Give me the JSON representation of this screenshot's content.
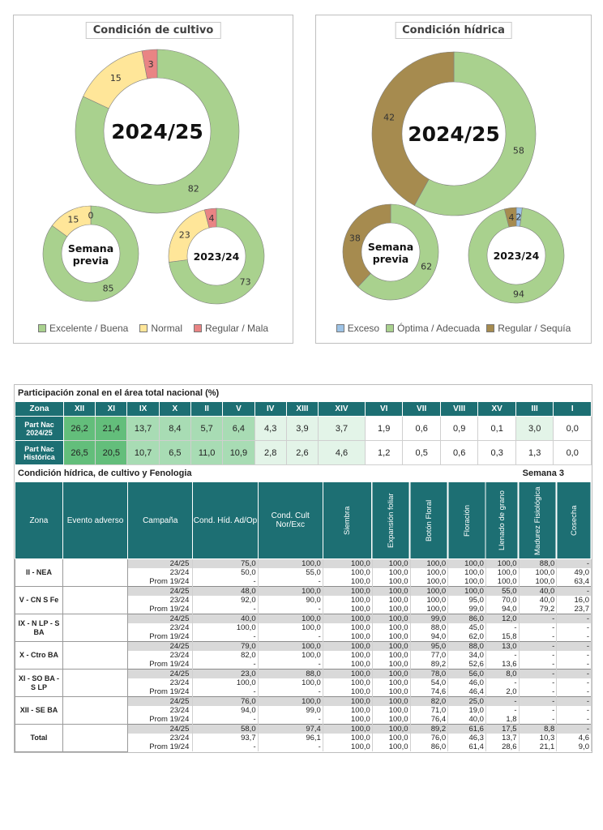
{
  "colors": {
    "green": "#a9d18e",
    "yellow": "#ffe699",
    "red": "#e98484",
    "brown": "#a68b4f",
    "blue": "#9dc3e6",
    "teal": "#1d6f73",
    "heat_dark": "#63be7b",
    "heat_mid": "#a8dcb4",
    "heat_light": "#e3f4e8"
  },
  "panel_cultivo": {
    "title": "Condición de cultivo",
    "donuts": {
      "main": {
        "center": "2024/25",
        "values": [
          82,
          15,
          3
        ]
      },
      "prev": {
        "center_line1": "Semana",
        "center_line2": "previa",
        "values": [
          85,
          15,
          0
        ]
      },
      "last": {
        "center": "2023/24",
        "values": [
          73,
          23,
          4
        ]
      }
    },
    "legend": [
      "Excelente / Buena",
      "Normal",
      "Regular / Mala"
    ]
  },
  "panel_hidrica": {
    "title": "Condición hídrica",
    "donuts": {
      "main": {
        "center": "2024/25",
        "values": [
          0,
          58,
          42
        ]
      },
      "prev": {
        "center_line1": "Semana",
        "center_line2": "previa",
        "values": [
          0,
          62,
          38
        ]
      },
      "last": {
        "center": "2023/24",
        "values": [
          2,
          94,
          4
        ]
      }
    },
    "legend": [
      "Exceso",
      "Óptima / Adecuada",
      "Regular / Sequía"
    ]
  },
  "participacion": {
    "title": "Participación zonal en el área total nacional (%)",
    "header_label": "Zona",
    "zonas": [
      "XII",
      "XI",
      "IX",
      "X",
      "II",
      "V",
      "IV",
      "XIII",
      "XIV",
      "VI",
      "VII",
      "VIII",
      "XV",
      "III",
      "I"
    ],
    "rows": [
      {
        "label_line1": "Part Nac",
        "label_line2": "2024/25",
        "values": [
          "26,2",
          "21,4",
          "13,7",
          "8,4",
          "5,7",
          "6,4",
          "4,3",
          "3,9",
          "3,7",
          "1,9",
          "0,6",
          "0,9",
          "0,1",
          "3,0",
          "0,0"
        ]
      },
      {
        "label_line1": "Part Nac",
        "label_line2": "Histórica",
        "values": [
          "26,5",
          "20,5",
          "10,7",
          "6,5",
          "11,0",
          "10,9",
          "2,8",
          "2,6",
          "4,6",
          "1,2",
          "0,5",
          "0,6",
          "0,3",
          "1,3",
          "0,0"
        ]
      }
    ]
  },
  "condicion": {
    "title": "Condición hídrica, de cultivo y Fenologia",
    "semana": "Semana 3",
    "headers": [
      "Zona",
      "Evento adverso",
      "Campaña",
      "Cond. Híd. Ad/Op",
      "Cond. Cult Nor/Exc",
      "Siembra",
      "Expansión foliar",
      "Botón Floral",
      "Floración",
      "Llenado de grano",
      "Madurez Fisiológica",
      "Cosecha"
    ],
    "groups": [
      {
        "zona": "II - NEA",
        "rows": [
          [
            "24/25",
            "75,0",
            "100,0",
            "100,0",
            "100,0",
            "100,0",
            "100,0",
            "100,0",
            "88,0",
            "-"
          ],
          [
            "23/24",
            "50,0",
            "55,0",
            "100,0",
            "100,0",
            "100,0",
            "100,0",
            "100,0",
            "100,0",
            "49,0"
          ],
          [
            "Prom 19/24",
            "-",
            "-",
            "100,0",
            "100,0",
            "100,0",
            "100,0",
            "100,0",
            "100,0",
            "63,4"
          ]
        ]
      },
      {
        "zona": "V - CN S Fe",
        "rows": [
          [
            "24/25",
            "48,0",
            "100,0",
            "100,0",
            "100,0",
            "100,0",
            "100,0",
            "55,0",
            "40,0",
            "-"
          ],
          [
            "23/24",
            "92,0",
            "90,0",
            "100,0",
            "100,0",
            "100,0",
            "95,0",
            "70,0",
            "40,0",
            "16,0"
          ],
          [
            "Prom 19/24",
            "-",
            "-",
            "100,0",
            "100,0",
            "100,0",
            "99,0",
            "94,0",
            "79,2",
            "23,7"
          ]
        ]
      },
      {
        "zona": "IX - N LP - S BA",
        "rows": [
          [
            "24/25",
            "40,0",
            "100,0",
            "100,0",
            "100,0",
            "99,0",
            "86,0",
            "12,0",
            "-",
            "-"
          ],
          [
            "23/24",
            "100,0",
            "100,0",
            "100,0",
            "100,0",
            "88,0",
            "45,0",
            "-",
            "-",
            "-"
          ],
          [
            "Prom 19/24",
            "-",
            "-",
            "100,0",
            "100,0",
            "94,0",
            "62,0",
            "15,8",
            "-",
            "-"
          ]
        ]
      },
      {
        "zona": "X - Ctro BA",
        "rows": [
          [
            "24/25",
            "79,0",
            "100,0",
            "100,0",
            "100,0",
            "95,0",
            "88,0",
            "13,0",
            "-",
            "-"
          ],
          [
            "23/24",
            "82,0",
            "100,0",
            "100,0",
            "100,0",
            "77,0",
            "34,0",
            "-",
            "-",
            "-"
          ],
          [
            "Prom 19/24",
            "-",
            "-",
            "100,0",
            "100,0",
            "89,2",
            "52,6",
            "13,6",
            "-",
            "-"
          ]
        ]
      },
      {
        "zona": "XI - SO BA - S LP",
        "rows": [
          [
            "24/25",
            "23,0",
            "88,0",
            "100,0",
            "100,0",
            "78,0",
            "56,0",
            "8,0",
            "-",
            "-"
          ],
          [
            "23/24",
            "100,0",
            "100,0",
            "100,0",
            "100,0",
            "54,0",
            "46,0",
            "-",
            "-",
            "-"
          ],
          [
            "Prom 19/24",
            "-",
            "-",
            "100,0",
            "100,0",
            "74,6",
            "46,4",
            "2,0",
            "-",
            "-"
          ]
        ]
      },
      {
        "zona": "XII - SE BA",
        "rows": [
          [
            "24/25",
            "76,0",
            "100,0",
            "100,0",
            "100,0",
            "82,0",
            "25,0",
            "-",
            "-",
            "-"
          ],
          [
            "23/24",
            "94,0",
            "99,0",
            "100,0",
            "100,0",
            "71,0",
            "19,0",
            "-",
            "-",
            "-"
          ],
          [
            "Prom 19/24",
            "-",
            "-",
            "100,0",
            "100,0",
            "76,4",
            "40,0",
            "1,8",
            "-",
            "-"
          ]
        ]
      },
      {
        "zona": "Total",
        "rows": [
          [
            "24/25",
            "58,0",
            "97,4",
            "100,0",
            "100,0",
            "89,2",
            "61,6",
            "17,5",
            "8,8",
            "-"
          ],
          [
            "23/24",
            "93,7",
            "96,1",
            "100,0",
            "100,0",
            "76,0",
            "46,3",
            "13,7",
            "10,3",
            "4,6"
          ],
          [
            "Prom 19/24",
            "-",
            "-",
            "100,0",
            "100,0",
            "86,0",
            "61,4",
            "28,6",
            "21,1",
            "9,0"
          ]
        ]
      }
    ]
  }
}
